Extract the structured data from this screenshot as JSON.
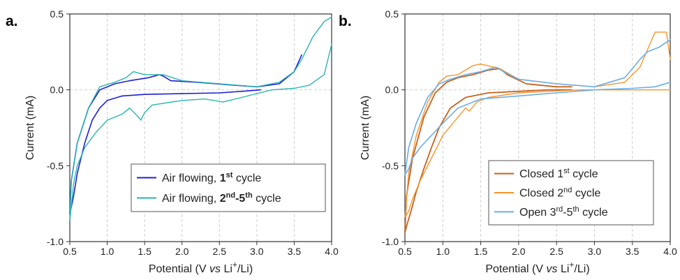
{
  "chart_data": [
    {
      "type": "line",
      "panel_label": "a.",
      "xlabel": {
        "pre": "Potential (V ",
        "vs": "vs",
        "mid": " Li",
        "sup": "+",
        "post": "/Li)"
      },
      "ylabel": "Current (mA)",
      "xlim": [
        0.5,
        4.0
      ],
      "ylim": [
        -1.0,
        0.5
      ],
      "x_ticks": [
        "0.5",
        "1.0",
        "1.5",
        "2.0",
        "2.5",
        "3.0",
        "3.5",
        "4.0"
      ],
      "y_ticks": [
        "-1.0",
        "-0.5",
        "0.0",
        "0.5"
      ],
      "grid": "vertical dashed",
      "legend_position": "bottom-right",
      "legend": [
        {
          "text": "Air flowing, ",
          "bold": "1",
          "bold_sup": "st",
          "tail": " cycle",
          "color": "#1f1fd6"
        },
        {
          "text": "Air flowing, ",
          "bold": "2",
          "bold_sup": "nd",
          "bold_mid": "-5",
          "bold_sup2": "th",
          "tail": " cycle",
          "color": "#2ab5b0"
        }
      ],
      "series": [
        {
          "name": "Air flowing, 1st cycle",
          "color": "#1f1fd6",
          "width": 1.6,
          "x": [
            3.05,
            2.8,
            2.5,
            2.0,
            1.5,
            1.2,
            1.0,
            0.9,
            0.8,
            0.7,
            0.6,
            0.55,
            0.5,
            0.52,
            0.6,
            0.75,
            0.9,
            1.1,
            1.3,
            1.55,
            1.7,
            1.75,
            1.85,
            2.2,
            2.7,
            3.0,
            3.3,
            3.5,
            3.6
          ],
          "y": [
            0.0,
            -0.01,
            -0.02,
            -0.025,
            -0.03,
            -0.04,
            -0.07,
            -0.12,
            -0.2,
            -0.35,
            -0.55,
            -0.7,
            -0.82,
            -0.6,
            -0.35,
            -0.12,
            0.0,
            0.04,
            0.06,
            0.08,
            0.1,
            0.09,
            0.06,
            0.05,
            0.03,
            0.02,
            0.04,
            0.12,
            0.23
          ]
        },
        {
          "name": "Air flowing, 2nd-5th cycle",
          "color": "#2ab5b0",
          "width": 1.4,
          "x": [
            4.0,
            3.9,
            3.7,
            3.5,
            3.2,
            2.8,
            2.55,
            2.3,
            2.0,
            1.6,
            1.5,
            1.45,
            1.4,
            1.3,
            1.2,
            1.0,
            0.85,
            0.7,
            0.6,
            0.55,
            0.5,
            0.52,
            0.6,
            0.75,
            0.9,
            1.1,
            1.25,
            1.35,
            1.5,
            1.75,
            2.0,
            2.5,
            3.0,
            3.3,
            3.5,
            3.6,
            3.75,
            3.9,
            4.0
          ],
          "y": [
            0.3,
            0.1,
            0.03,
            0.01,
            0.0,
            -0.05,
            -0.08,
            -0.06,
            -0.07,
            -0.1,
            -0.15,
            -0.2,
            -0.17,
            -0.12,
            -0.16,
            -0.2,
            -0.28,
            -0.38,
            -0.5,
            -0.62,
            -0.86,
            -0.6,
            -0.35,
            -0.12,
            0.02,
            0.05,
            0.08,
            0.12,
            0.1,
            0.1,
            0.06,
            0.04,
            0.02,
            0.05,
            0.12,
            0.2,
            0.35,
            0.45,
            0.48
          ]
        }
      ]
    },
    {
      "type": "line",
      "panel_label": "b.",
      "xlabel": {
        "pre": "Potential (V ",
        "vs": "vs",
        "mid": " Li",
        "sup": "+",
        "post": "/Li)"
      },
      "ylabel": "Current (mA)",
      "xlim": [
        0.5,
        4.0
      ],
      "ylim": [
        -1.0,
        0.5
      ],
      "x_ticks": [
        "0.5",
        "1.0",
        "1.5",
        "2.0",
        "2.5",
        "3.0",
        "3.5",
        "4.0"
      ],
      "y_ticks": [
        "-1.0",
        "-0.5",
        "0.0",
        "0.5"
      ],
      "grid": "vertical dashed",
      "legend_position": "bottom-right",
      "legend": [
        {
          "text": "Closed 1",
          "sup": "st",
          "tail": " cycle",
          "color": "#c8621c"
        },
        {
          "text": "Closed 2",
          "sup": "nd",
          "tail": " cycle",
          "color": "#f5952f"
        },
        {
          "text": "Open 3",
          "sup": "rd",
          "mid": "-5",
          "sup2": "th",
          "tail": " cycle",
          "color": "#6aaee6"
        }
      ],
      "series": [
        {
          "name": "Closed 1st cycle",
          "color": "#c8621c",
          "width": 1.8,
          "x": [
            2.7,
            2.4,
            2.0,
            1.6,
            1.3,
            1.1,
            0.95,
            0.85,
            0.75,
            0.65,
            0.58,
            0.52,
            0.5,
            0.52,
            0.6,
            0.75,
            0.9,
            1.05,
            1.2,
            1.4,
            1.6,
            1.75,
            1.85,
            2.1,
            2.5,
            2.7
          ],
          "y": [
            0.0,
            0.0,
            -0.01,
            -0.02,
            -0.05,
            -0.12,
            -0.25,
            -0.38,
            -0.52,
            -0.67,
            -0.8,
            -0.9,
            -0.94,
            -0.7,
            -0.45,
            -0.18,
            -0.02,
            0.05,
            0.08,
            0.1,
            0.13,
            0.14,
            0.1,
            0.04,
            0.02,
            0.02
          ]
        },
        {
          "name": "Closed 2nd cycle",
          "color": "#f5952f",
          "width": 1.4,
          "x": [
            4.0,
            3.6,
            3.2,
            2.8,
            2.4,
            2.0,
            1.6,
            1.45,
            1.35,
            1.3,
            1.2,
            1.0,
            0.85,
            0.7,
            0.6,
            0.55,
            0.5,
            0.55,
            0.65,
            0.8,
            0.95,
            1.05,
            1.2,
            1.4,
            1.5,
            1.75,
            2.0,
            2.5,
            3.0,
            3.4,
            3.6,
            3.8,
            3.95,
            4.0
          ],
          "y": [
            0.0,
            0.0,
            0.0,
            0.0,
            -0.01,
            -0.02,
            -0.05,
            -0.08,
            -0.14,
            -0.12,
            -0.18,
            -0.3,
            -0.45,
            -0.6,
            -0.72,
            -0.8,
            -0.84,
            -0.55,
            -0.3,
            -0.08,
            0.05,
            0.09,
            0.1,
            0.16,
            0.17,
            0.14,
            0.07,
            0.04,
            0.02,
            0.05,
            0.15,
            0.38,
            0.38,
            0.2
          ]
        },
        {
          "name": "Open 3rd-5th cycle",
          "color": "#6aaee6",
          "width": 1.6,
          "x": [
            4.0,
            3.8,
            3.5,
            3.0,
            2.5,
            2.0,
            1.5,
            1.2,
            1.0,
            0.85,
            0.7,
            0.6,
            0.55,
            0.5,
            0.55,
            0.65,
            0.8,
            0.95,
            1.1,
            1.3,
            1.5,
            1.7,
            1.8,
            2.0,
            2.5,
            3.0,
            3.4,
            3.6,
            3.7,
            3.85,
            4.0
          ],
          "y": [
            0.05,
            0.02,
            0.01,
            0.0,
            -0.02,
            -0.04,
            -0.06,
            -0.12,
            -0.22,
            -0.3,
            -0.38,
            -0.45,
            -0.52,
            -0.56,
            -0.38,
            -0.22,
            -0.05,
            0.04,
            0.07,
            0.1,
            0.12,
            0.15,
            0.12,
            0.07,
            0.04,
            0.02,
            0.08,
            0.2,
            0.25,
            0.28,
            0.33
          ]
        }
      ]
    }
  ]
}
